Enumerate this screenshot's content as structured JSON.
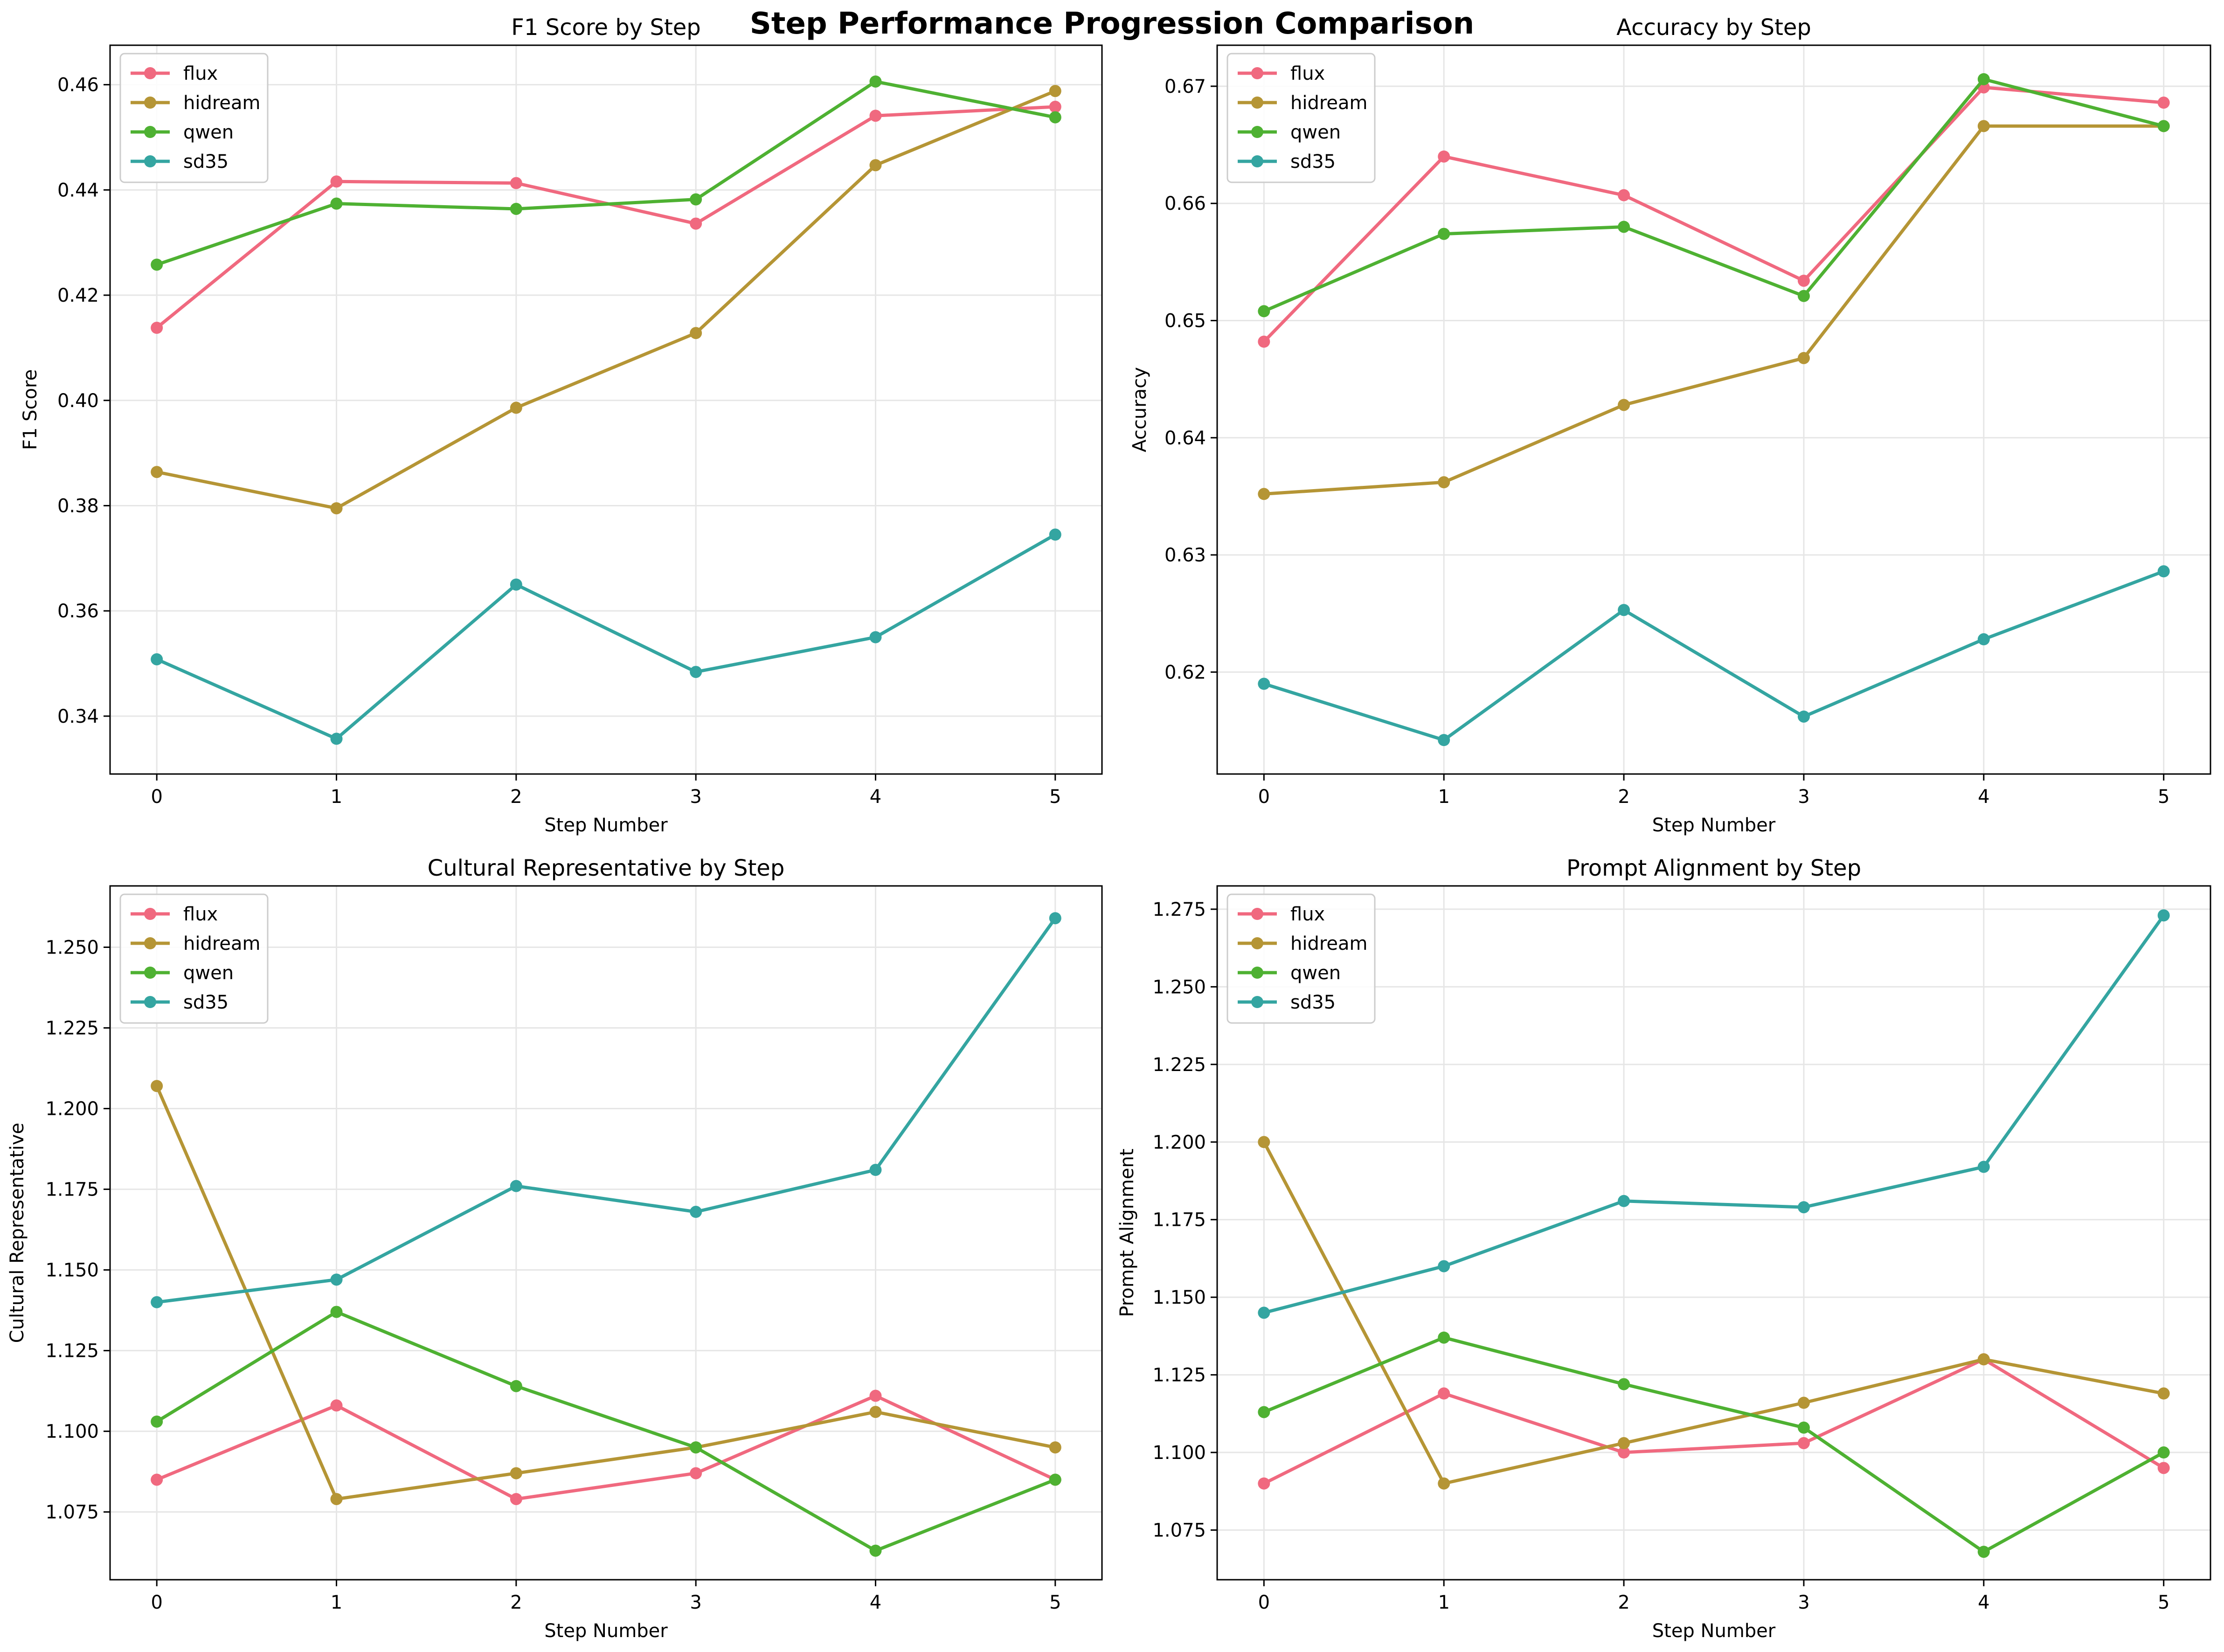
{
  "figure": {
    "title": "Step Performance Progression Comparison"
  },
  "series_colors": {
    "flux": "#f0697f",
    "hidream": "#b59535",
    "qwen": "#4eb132",
    "sd35": "#34a5a1"
  },
  "chart_data": [
    {
      "type": "line",
      "title": "F1 Score by Step",
      "xlabel": "Step Number",
      "ylabel": "F1 Score",
      "x": [
        0,
        1,
        2,
        3,
        4,
        5
      ],
      "xlim": [
        -0.26,
        5.26
      ],
      "ylim": [
        0.329,
        0.4675
      ],
      "yticks": [
        0.34,
        0.36,
        0.38,
        0.4,
        0.42,
        0.44,
        0.46
      ],
      "ytick_labels": [
        "0.34",
        "0.36",
        "0.38",
        "0.40",
        "0.42",
        "0.44",
        "0.46"
      ],
      "grid": true,
      "legend": "upper left",
      "series": [
        {
          "name": "flux",
          "values": [
            0.4138,
            0.4416,
            0.4413,
            0.4336,
            0.4541,
            0.4558
          ]
        },
        {
          "name": "hidream",
          "values": [
            0.3864,
            0.3795,
            0.3986,
            0.4128,
            0.4447,
            0.4588
          ]
        },
        {
          "name": "qwen",
          "values": [
            0.4258,
            0.4374,
            0.4364,
            0.4382,
            0.4606,
            0.4538
          ]
        },
        {
          "name": "sd35",
          "values": [
            0.3508,
            0.3357,
            0.365,
            0.3484,
            0.355,
            0.3745
          ]
        }
      ]
    },
    {
      "type": "line",
      "title": "Accuracy by Step",
      "xlabel": "Step Number",
      "ylabel": "Accuracy",
      "x": [
        0,
        1,
        2,
        3,
        4,
        5
      ],
      "xlim": [
        -0.26,
        5.26
      ],
      "ylim": [
        0.6113,
        0.6735
      ],
      "yticks": [
        0.62,
        0.63,
        0.64,
        0.65,
        0.66,
        0.67
      ],
      "ytick_labels": [
        "0.62",
        "0.63",
        "0.64",
        "0.65",
        "0.66",
        "0.67"
      ],
      "grid": true,
      "legend": "upper left",
      "series": [
        {
          "name": "flux",
          "values": [
            0.6482,
            0.664,
            0.6607,
            0.6534,
            0.6699,
            0.6686
          ]
        },
        {
          "name": "hidream",
          "values": [
            0.6352,
            0.6362,
            0.6428,
            0.6468,
            0.6666,
            0.6666
          ]
        },
        {
          "name": "qwen",
          "values": [
            0.6508,
            0.6574,
            0.658,
            0.6521,
            0.6706,
            0.6666
          ]
        },
        {
          "name": "sd35",
          "values": [
            0.619,
            0.6142,
            0.6253,
            0.6162,
            0.6228,
            0.6286
          ]
        }
      ]
    },
    {
      "type": "line",
      "title": "Cultural Representative by Step",
      "xlabel": "Step Number",
      "ylabel": "Cultural Representative",
      "x": [
        0,
        1,
        2,
        3,
        4,
        5
      ],
      "xlim": [
        -0.26,
        5.26
      ],
      "ylim": [
        1.054,
        1.269
      ],
      "yticks": [
        1.075,
        1.1,
        1.125,
        1.15,
        1.175,
        1.2,
        1.225,
        1.25
      ],
      "ytick_labels": [
        "1.075",
        "1.100",
        "1.125",
        "1.150",
        "1.175",
        "1.200",
        "1.225",
        "1.250"
      ],
      "grid": true,
      "legend": "upper left",
      "series": [
        {
          "name": "flux",
          "values": [
            1.085,
            1.108,
            1.079,
            1.087,
            1.111,
            1.085
          ]
        },
        {
          "name": "hidream",
          "values": [
            1.207,
            1.079,
            1.087,
            1.095,
            1.106,
            1.095
          ]
        },
        {
          "name": "qwen",
          "values": [
            1.103,
            1.137,
            1.114,
            1.095,
            1.063,
            1.085
          ]
        },
        {
          "name": "sd35",
          "values": [
            1.14,
            1.147,
            1.176,
            1.168,
            1.181,
            1.259
          ]
        }
      ]
    },
    {
      "type": "line",
      "title": "Prompt Alignment by Step",
      "xlabel": "Step Number",
      "ylabel": "Prompt Alignment",
      "x": [
        0,
        1,
        2,
        3,
        4,
        5
      ],
      "xlim": [
        -0.26,
        5.26
      ],
      "ylim": [
        1.059,
        1.2825
      ],
      "yticks": [
        1.075,
        1.1,
        1.125,
        1.15,
        1.175,
        1.2,
        1.225,
        1.25,
        1.275
      ],
      "ytick_labels": [
        "1.075",
        "1.100",
        "1.125",
        "1.150",
        "1.175",
        "1.200",
        "1.225",
        "1.250",
        "1.275"
      ],
      "grid": true,
      "legend": "upper left",
      "series": [
        {
          "name": "flux",
          "values": [
            1.09,
            1.119,
            1.1,
            1.103,
            1.13,
            1.095
          ]
        },
        {
          "name": "hidream",
          "values": [
            1.2,
            1.09,
            1.103,
            1.116,
            1.13,
            1.119
          ]
        },
        {
          "name": "qwen",
          "values": [
            1.113,
            1.137,
            1.122,
            1.108,
            1.068,
            1.1
          ]
        },
        {
          "name": "sd35",
          "values": [
            1.145,
            1.16,
            1.181,
            1.179,
            1.192,
            1.273
          ]
        }
      ]
    }
  ]
}
